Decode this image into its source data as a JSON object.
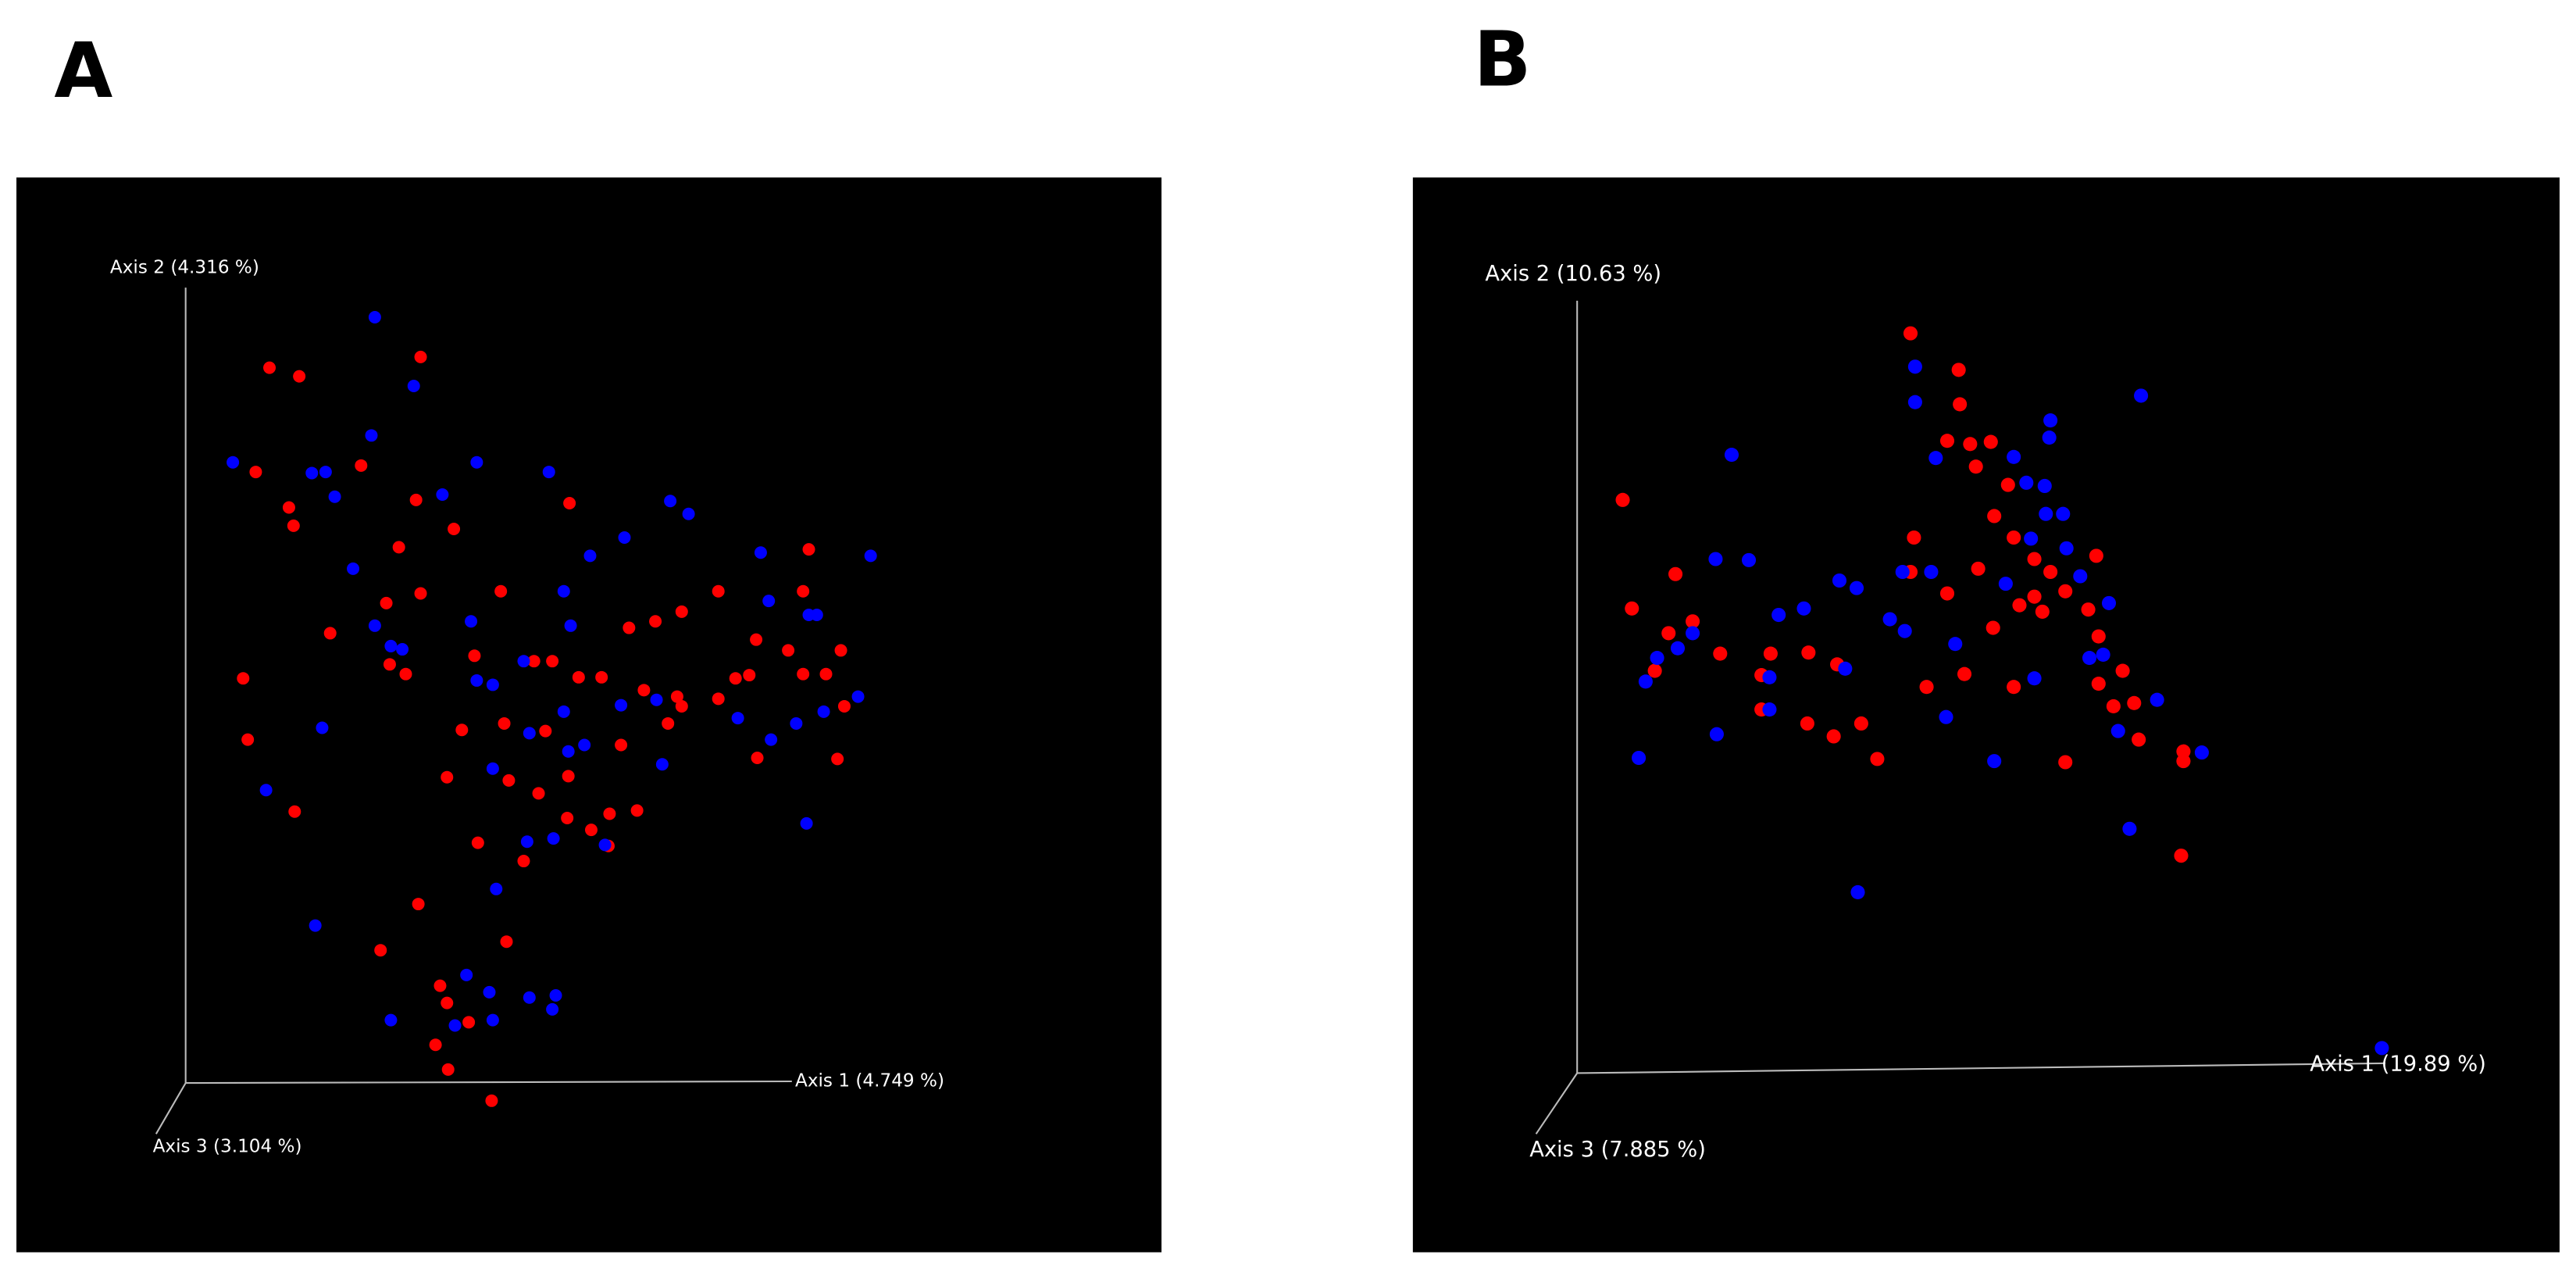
{
  "chart_data": [
    {
      "type": "scatter",
      "label": "A",
      "axis_labels": [
        "Axis 1 (4.749 %)",
        "Axis 2 (4.316 %)",
        "Axis 3 (3.104 %)"
      ],
      "xlim": [
        0,
        100
      ],
      "ylim": [
        0,
        100
      ],
      "series": [
        {
          "color": "#ff0000",
          "x": [
            22.1,
            24.7,
            35.3,
            20.9,
            30.1,
            23.8,
            24.2,
            34.9,
            38.2,
            33.4,
            48.3,
            27.4,
            32.3,
            35.3,
            19.8,
            20.2,
            24.3,
            32.6,
            34.0,
            42.3,
            40.0,
            45.2,
            46.8,
            49.1,
            53.5,
            55.8,
            58.1,
            61.3,
            68.7,
            69.2,
            64.6,
            67.4,
            72.0,
            70.7,
            68.7,
            64.0,
            61.3,
            62.8,
            57.7,
            54.8,
            51.1,
            38.9,
            42.6,
            46.2,
            52.8,
            56.9,
            58.1,
            37.6,
            43.0,
            45.6,
            48.2,
            51.8,
            54.2,
            40.3,
            44.3,
            48.1,
            50.2,
            51.7,
            71.7,
            64.7,
            72.3,
            35.1,
            31.8,
            42.8,
            37.0,
            37.6,
            39.5,
            36.6,
            37.7,
            41.5
          ],
          "y": [
            82.3,
            81.5,
            83.3,
            72.6,
            73.2,
            69.3,
            67.6,
            70.0,
            67.3,
            65.6,
            69.7,
            57.6,
            60.4,
            61.3,
            53.4,
            47.7,
            41.0,
            54.7,
            53.8,
            61.5,
            55.5,
            55.0,
            55.0,
            53.5,
            58.1,
            58.7,
            59.6,
            61.5,
            61.5,
            65.4,
            57.0,
            56.0,
            56.0,
            53.8,
            53.8,
            53.7,
            51.5,
            53.4,
            51.7,
            52.3,
            53.5,
            48.6,
            49.2,
            48.5,
            47.2,
            49.2,
            50.8,
            44.2,
            43.9,
            42.7,
            44.3,
            40.8,
            41.1,
            38.1,
            36.4,
            40.4,
            39.3,
            37.8,
            45.9,
            46.0,
            50.8,
            32.4,
            28.1,
            28.9,
            24.8,
            23.2,
            21.4,
            19.3,
            17.0,
            14.1
          ]
        },
        {
          "color": "#0000ff",
          "x": [
            31.3,
            34.7,
            18.9,
            25.8,
            27.0,
            27.8,
            31.0,
            37.2,
            40.2,
            46.5,
            57.1,
            58.7,
            29.4,
            31.3,
            32.7,
            33.7,
            26.7,
            21.8,
            26.1,
            39.7,
            47.8,
            50.1,
            53.1,
            48.4,
            44.3,
            40.2,
            41.6,
            47.8,
            52.8,
            55.9,
            65.0,
            65.7,
            69.2,
            69.9,
            74.6,
            73.5,
            70.5,
            68.1,
            65.9,
            63.0,
            69.0,
            41.6,
            44.8,
            48.2,
            49.6,
            56.4,
            46.9,
            51.4,
            44.6,
            41.9,
            39.3,
            41.3,
            44.8,
            47.1,
            46.8,
            32.7,
            38.3,
            41.6
          ],
          "y": [
            87.0,
            80.6,
            73.5,
            72.5,
            72.6,
            70.3,
            76.0,
            70.5,
            73.5,
            72.6,
            69.9,
            68.7,
            63.6,
            58.3,
            56.4,
            56.1,
            48.8,
            43.0,
            30.4,
            58.7,
            61.5,
            64.8,
            66.5,
            58.3,
            55.0,
            53.2,
            52.8,
            50.3,
            50.9,
            51.4,
            65.1,
            60.6,
            59.3,
            59.3,
            64.8,
            51.7,
            50.3,
            49.2,
            47.7,
            49.7,
            39.9,
            45.0,
            48.3,
            46.6,
            47.2,
            45.4,
            38.5,
            37.9,
            38.2,
            33.8,
            25.8,
            24.2,
            23.7,
            23.9,
            22.6,
            21.6,
            21.1,
            21.6
          ]
        }
      ]
    },
    {
      "type": "scatter",
      "label": "B",
      "axis_labels": [
        "Axis 1 (19.89 %)",
        "Axis 2 (10.63 %)",
        "Axis 3 (7.885 %)"
      ],
      "xlim": [
        0,
        100
      ],
      "ylim": [
        0,
        100
      ],
      "series": [
        {
          "color": "#ff0000",
          "x": [
            43.4,
            47.6,
            47.7,
            18.3,
            46.6,
            48.6,
            50.4,
            49.1,
            51.9,
            50.7,
            52.4,
            54.2,
            55.6,
            59.6,
            56.9,
            43.7,
            43.4,
            49.3,
            22.9,
            24.4,
            22.3,
            19.1,
            21.1,
            26.8,
            31.2,
            34.5,
            37.0,
            30.4,
            30.4,
            34.4,
            36.7,
            39.1,
            40.5,
            44.8,
            48.1,
            52.4,
            54.2,
            54.9,
            52.9,
            58.9,
            59.8,
            61.9,
            59.8,
            61.1,
            62.9,
            63.3,
            56.9,
            67.2,
            67.2,
            67.0,
            46.6,
            50.6
          ],
          "y": [
            85.5,
            82.1,
            78.9,
            70.0,
            75.5,
            75.2,
            75.4,
            73.1,
            71.4,
            68.5,
            66.5,
            64.5,
            63.3,
            64.8,
            61.5,
            66.5,
            63.3,
            63.6,
            63.1,
            58.7,
            57.6,
            59.9,
            54.1,
            55.7,
            55.7,
            55.8,
            54.7,
            53.7,
            50.5,
            49.2,
            48.0,
            49.2,
            45.9,
            52.6,
            53.8,
            52.6,
            61.0,
            59.6,
            60.2,
            59.8,
            57.3,
            54.1,
            52.9,
            50.8,
            51.1,
            47.7,
            45.6,
            46.6,
            45.7,
            36.9,
            61.3,
            58.1
          ]
        },
        {
          "color": "#0000ff",
          "x": [
            43.8,
            43.8,
            27.8,
            63.5,
            55.6,
            55.5,
            45.6,
            52.4,
            53.5,
            55.1,
            55.2,
            56.7,
            53.9,
            57.0,
            58.2,
            60.7,
            42.7,
            45.2,
            51.7,
            26.4,
            29.3,
            37.2,
            38.7,
            34.1,
            31.9,
            24.4,
            23.1,
            21.3,
            20.3,
            19.7,
            26.5,
            31.1,
            31.1,
            37.7,
            41.6,
            42.9,
            47.3,
            46.5,
            50.7,
            54.2,
            59.0,
            60.2,
            61.5,
            64.9,
            68.8,
            62.5,
            38.8,
            84.5
          ],
          "y": [
            82.4,
            79.1,
            74.2,
            79.7,
            77.4,
            75.8,
            73.9,
            74.0,
            71.6,
            71.3,
            68.7,
            68.7,
            66.4,
            65.5,
            62.9,
            60.4,
            63.3,
            63.3,
            62.2,
            64.5,
            64.4,
            62.5,
            61.8,
            59.9,
            59.3,
            57.6,
            56.2,
            55.3,
            53.1,
            46.0,
            48.2,
            53.5,
            50.5,
            54.3,
            58.9,
            57.8,
            56.6,
            49.8,
            45.7,
            53.4,
            55.3,
            55.6,
            48.5,
            51.4,
            46.5,
            39.4,
            33.5,
            19.0
          ]
        }
      ]
    }
  ]
}
